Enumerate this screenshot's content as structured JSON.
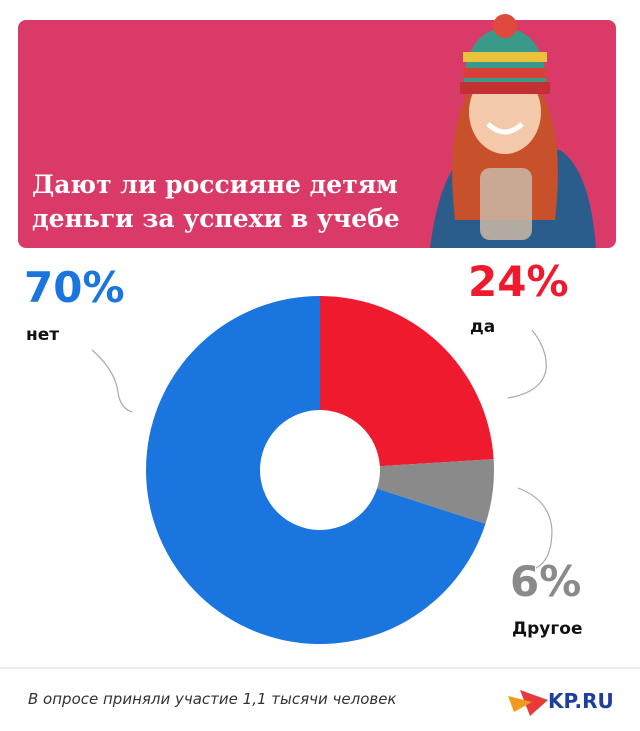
{
  "chart_data": {
    "type": "donut",
    "title": "Дают ли россияне детям деньги за успехи в учебе",
    "categories": [
      "да",
      "Другое",
      "нет"
    ],
    "values": [
      24,
      6,
      70
    ],
    "value_labels": [
      "24%",
      "6%",
      "70%"
    ],
    "colors": [
      "#ef1a2d",
      "#8a8a8a",
      "#1a76de"
    ],
    "note": "В опросе приняли участие 1,1 тысячи человек",
    "logo": "KP.RU"
  }
}
